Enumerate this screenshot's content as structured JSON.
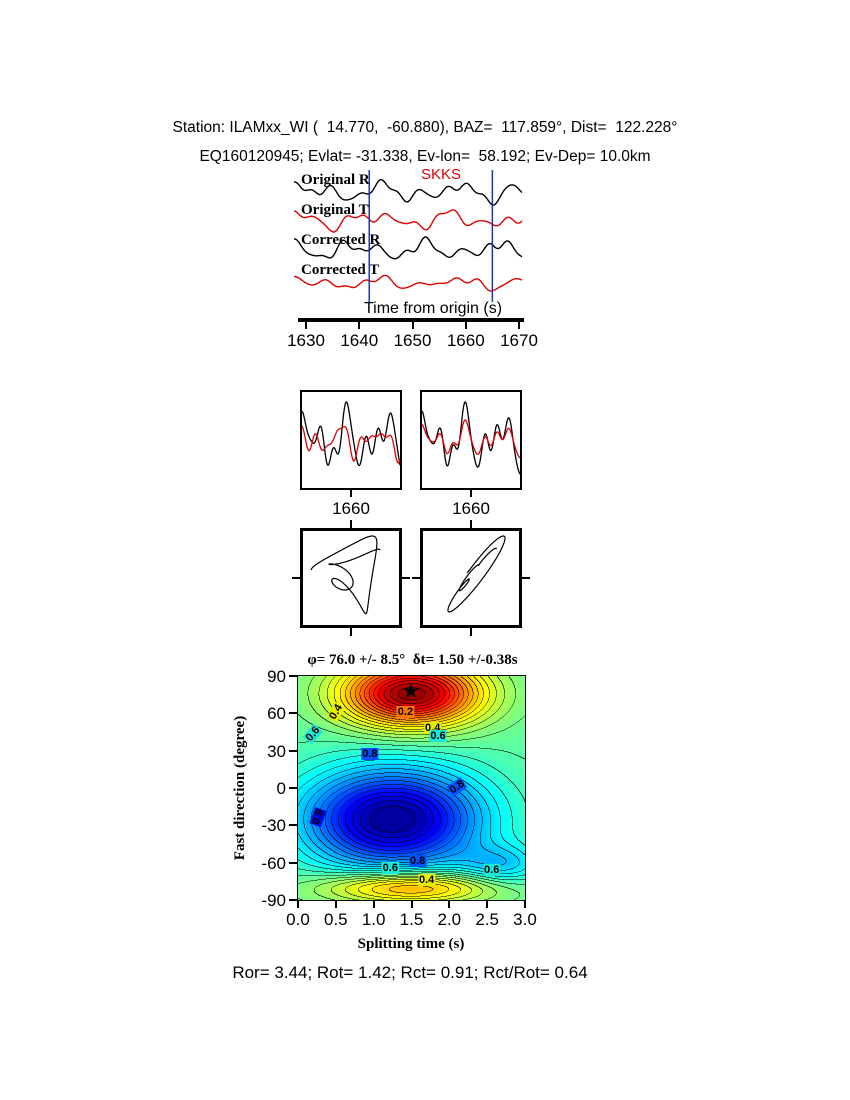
{
  "header": {
    "line1": "Station: ILAMxx_WI (  14.770,  -60.880), BAZ=  117.859°, Dist=  122.228°",
    "line2": "EQ160120945; Evlat= -31.338, Ev-lon=  58.192; Ev-Dep= 10.0km"
  },
  "waveform_panel": {
    "phase_label": "SKKS",
    "trace_labels": [
      "Original R",
      "Original T",
      "Corrected R",
      "Corrected T"
    ],
    "window_color": "#2233bb",
    "window_fracs": [
      0.33,
      0.87
    ],
    "traces": [
      {
        "label": "Original R",
        "color": "#000000",
        "amp": 13,
        "harmonics": [
          [
            1,
            3.1,
            0.3
          ],
          [
            0.75,
            5.2,
            1.9
          ],
          [
            0.55,
            7.6,
            0.7
          ],
          [
            0.4,
            10.4,
            2.6
          ],
          [
            0.3,
            13.3,
            1.2
          ]
        ]
      },
      {
        "label": "Original T",
        "color": "#dd0000",
        "amp": 12,
        "harmonics": [
          [
            1,
            2.9,
            1.5
          ],
          [
            0.7,
            4.8,
            0.2
          ],
          [
            0.55,
            7.1,
            2.9
          ],
          [
            0.4,
            9.8,
            1.1
          ],
          [
            0.3,
            12.6,
            2.3
          ]
        ]
      },
      {
        "label": "Corrected R",
        "color": "#000000",
        "amp": 13,
        "harmonics": [
          [
            1,
            3.3,
            2.1
          ],
          [
            0.8,
            5.5,
            0.9
          ],
          [
            0.5,
            8.1,
            2.4
          ],
          [
            0.4,
            10.9,
            0.1
          ],
          [
            0.25,
            13.9,
            1.8
          ]
        ]
      },
      {
        "label": "Corrected T",
        "color": "#dd0000",
        "amp": 8,
        "harmonics": [
          [
            0.9,
            3.0,
            0.8
          ],
          [
            0.6,
            5.0,
            2.5
          ],
          [
            0.5,
            7.4,
            1.3
          ],
          [
            0.35,
            10.1,
            0.4
          ],
          [
            0.25,
            12.2,
            2.8
          ]
        ]
      }
    ],
    "time_axis": {
      "label": "Time from origin (s)",
      "ticks": [
        "1630",
        "1640",
        "1650",
        "1660",
        "1670"
      ]
    }
  },
  "zoom_boxes": [
    {
      "tick_label": "1660",
      "traces": [
        {
          "color": "#000000",
          "amp": 38,
          "harmonics": [
            [
              1,
              2.6,
              0.4
            ],
            [
              0.8,
              4.3,
              2.0
            ],
            [
              0.55,
              6.5,
              1.0
            ],
            [
              0.35,
              8.8,
              2.8
            ]
          ]
        },
        {
          "color": "#dd0000",
          "amp": 23,
          "harmonics": [
            [
              1,
              2.6,
              1.6
            ],
            [
              0.8,
              4.3,
              3.2
            ],
            [
              0.55,
              6.5,
              2.2
            ],
            [
              0.35,
              8.8,
              0.6
            ]
          ]
        }
      ]
    },
    {
      "tick_label": "1660",
      "traces": [
        {
          "color": "#000000",
          "amp": 38,
          "harmonics": [
            [
              1,
              2.7,
              0.5
            ],
            [
              0.8,
              4.4,
              2.1
            ],
            [
              0.55,
              6.6,
              1.1
            ],
            [
              0.35,
              8.9,
              2.9
            ]
          ]
        },
        {
          "color": "#dd0000",
          "amp": 20,
          "harmonics": [
            [
              1,
              2.7,
              0.5
            ],
            [
              0.8,
              4.4,
              2.1
            ],
            [
              0.55,
              6.6,
              1.1
            ],
            [
              0.35,
              8.9,
              2.9
            ]
          ]
        }
      ]
    }
  ],
  "particle_boxes": [
    {
      "xamp": 40,
      "yamp": 42,
      "x_harmonics": [
        [
          1,
          1.4,
          1.75
        ],
        [
          0.7,
          2.3,
          2.9
        ],
        [
          0.45,
          3.6,
          0.9
        ]
      ],
      "y_harmonics": [
        [
          1,
          1.4,
          0.2
        ],
        [
          0.7,
          2.3,
          1.3
        ],
        [
          0.45,
          3.6,
          2.4
        ]
      ]
    },
    {
      "xamp": 34,
      "yamp": 42,
      "x_harmonics": [
        [
          1,
          1.4,
          0.65
        ],
        [
          0.7,
          2.3,
          1.75
        ],
        [
          0.45,
          3.6,
          2.85
        ]
      ],
      "y_harmonics": [
        [
          1,
          1.4,
          0.3
        ],
        [
          0.7,
          2.3,
          1.4
        ],
        [
          0.45,
          3.6,
          2.5
        ]
      ]
    }
  ],
  "chart_data": {
    "type": "heatmap",
    "title": "φ= 76.0 +/- 8.5°  δt= 1.50 +/-0.38s",
    "xlabel": "Splitting time (s)",
    "ylabel": "Fast direction (degree)",
    "x_range": [
      0,
      3
    ],
    "y_range": [
      -90,
      90
    ],
    "x_ticks": [
      "0.0",
      "0.5",
      "1.0",
      "1.5",
      "2.0",
      "2.5",
      "3.0"
    ],
    "y_ticks": [
      "90",
      "60",
      "30",
      "0",
      "-30",
      "-60",
      "-90"
    ],
    "best_fit": {
      "phi_deg": 76.0,
      "phi_err_deg": 8.5,
      "dt_s": 1.5,
      "dt_err_s": 0.38
    },
    "star": {
      "dt": 1.5,
      "phi": 76,
      "glyph": "★"
    },
    "colormap": "jet-inverted",
    "surface": {
      "base": 0.53,
      "step": 0.03,
      "clamp": [
        0.03,
        0.97
      ],
      "blobs": [
        {
          "dt": 1.5,
          "phi": 76,
          "sdt": 0.9,
          "sphi": 26,
          "amp": -0.52
        },
        {
          "dt": 1.25,
          "phi": -25,
          "sdt": 1.15,
          "sphi": 40,
          "amp": 0.46
        },
        {
          "dt": 1.45,
          "phi": -80,
          "sdt": 1.1,
          "sphi": 13,
          "amp": -0.28
        },
        {
          "dt": 2.7,
          "phi": -62,
          "sdt": 0.55,
          "sphi": 16,
          "amp": 0.13
        }
      ]
    },
    "contour_labels": [
      {
        "text": "0.4",
        "dt": 0.5,
        "phi": 61,
        "bg": "#e8f000",
        "rot": -60
      },
      {
        "text": "0.2",
        "dt": 1.42,
        "phi": 61,
        "bg": "#ff7700",
        "rot": 0
      },
      {
        "text": "0.4",
        "dt": 1.78,
        "phi": 48,
        "bg": "#e8f000",
        "rot": 0
      },
      {
        "text": "0.6",
        "dt": 0.2,
        "phi": 43,
        "bg": "#1ae8d8",
        "rot": -50
      },
      {
        "text": "0.6",
        "dt": 1.85,
        "phi": 42,
        "bg": "#1ae8d8",
        "rot": 0
      },
      {
        "text": "0.8",
        "dt": 0.95,
        "phi": 27,
        "bg": "#0050ff",
        "rot": 0
      },
      {
        "text": "0.8",
        "dt": 2.1,
        "phi": 1,
        "bg": "#0050ff",
        "rot": -35
      },
      {
        "text": "0.9",
        "dt": 0.27,
        "phi": -23,
        "bg": "#0008e0",
        "rot": -70
      },
      {
        "text": "0.8",
        "dt": 1.58,
        "phi": -59,
        "bg": "#0050ff",
        "rot": 0
      },
      {
        "text": "0.6",
        "dt": 1.22,
        "phi": -64,
        "bg": "#1ae8d8",
        "rot": 0
      },
      {
        "text": "0.6",
        "dt": 2.56,
        "phi": -66,
        "bg": "#1ae8d8",
        "rot": 0
      },
      {
        "text": "0.4",
        "dt": 1.7,
        "phi": -74,
        "bg": "#e8f000",
        "rot": 0
      }
    ]
  },
  "footer": {
    "results": "Ror= 3.44; Rot= 1.42; Rct= 0.91; Rct/Rot= 0.64"
  }
}
